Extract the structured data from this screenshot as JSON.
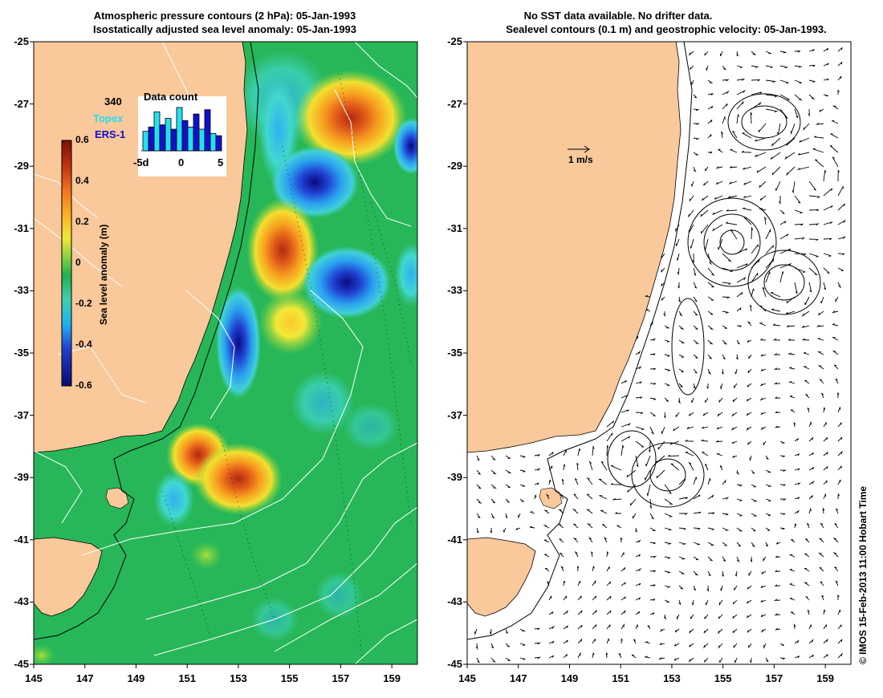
{
  "left_panel": {
    "title_line1": "Atmospheric pressure contours (2 hPa): 05-Jan-1993",
    "title_line2": "Isostatically adjusted sea level anomaly: 05-Jan-1993",
    "lat_ticks": [
      "-25",
      "-27",
      "-29",
      "-31",
      "-33",
      "-35",
      "-37",
      "-39",
      "-41",
      "-43",
      "-45"
    ],
    "lon_ticks": [
      "145",
      "147",
      "149",
      "151",
      "153",
      "155",
      "157",
      "159"
    ],
    "colorbar": {
      "label": "Sea level anomaly (m)",
      "ticks": [
        "0.6",
        "0.4",
        "0.2",
        "0",
        "-0.2",
        "-0.4",
        "-0.6"
      ]
    },
    "data_count": {
      "title": "Data count",
      "total": "340",
      "series": [
        {
          "name": "Topex",
          "color": "#22e0f0"
        },
        {
          "name": "ERS-1",
          "color": "#1010d0"
        }
      ],
      "x_ticks": [
        "-5d",
        "0",
        "5"
      ],
      "bars": [
        {
          "sat": "topex",
          "value": 0.45
        },
        {
          "sat": "ers",
          "value": 0.55
        },
        {
          "sat": "topex",
          "value": 0.9
        },
        {
          "sat": "ers",
          "value": 0.6
        },
        {
          "sat": "topex",
          "value": 0.75
        },
        {
          "sat": "ers",
          "value": 0.5
        },
        {
          "sat": "topex",
          "value": 1.0
        },
        {
          "sat": "ers",
          "value": 0.7
        },
        {
          "sat": "topex",
          "value": 0.55
        },
        {
          "sat": "ers",
          "value": 0.85
        },
        {
          "sat": "topex",
          "value": 0.5
        },
        {
          "sat": "ers",
          "value": 0.95
        },
        {
          "sat": "topex",
          "value": 0.4
        },
        {
          "sat": "ers",
          "value": 0.35
        }
      ]
    }
  },
  "right_panel": {
    "title_line1": "No SST data available.  No drifter data.",
    "title_line2": "Sealevel contours (0.1 m) and geostrophic velocity: 05-Jan-1993.",
    "lat_ticks": [
      "-25",
      "-27",
      "-29",
      "-31",
      "-33",
      "-35",
      "-37",
      "-39",
      "-41",
      "-43",
      "-45"
    ],
    "lon_ticks": [
      "145",
      "147",
      "149",
      "151",
      "153",
      "155",
      "157",
      "159"
    ],
    "scale_label": "1 m/s"
  },
  "copyright": "© IMOS 15-Feb-2013 11:00 Hobart Time",
  "colors": {
    "land": "#f9c89b",
    "ocean_base": "#22b24c",
    "coast": "#000000"
  }
}
